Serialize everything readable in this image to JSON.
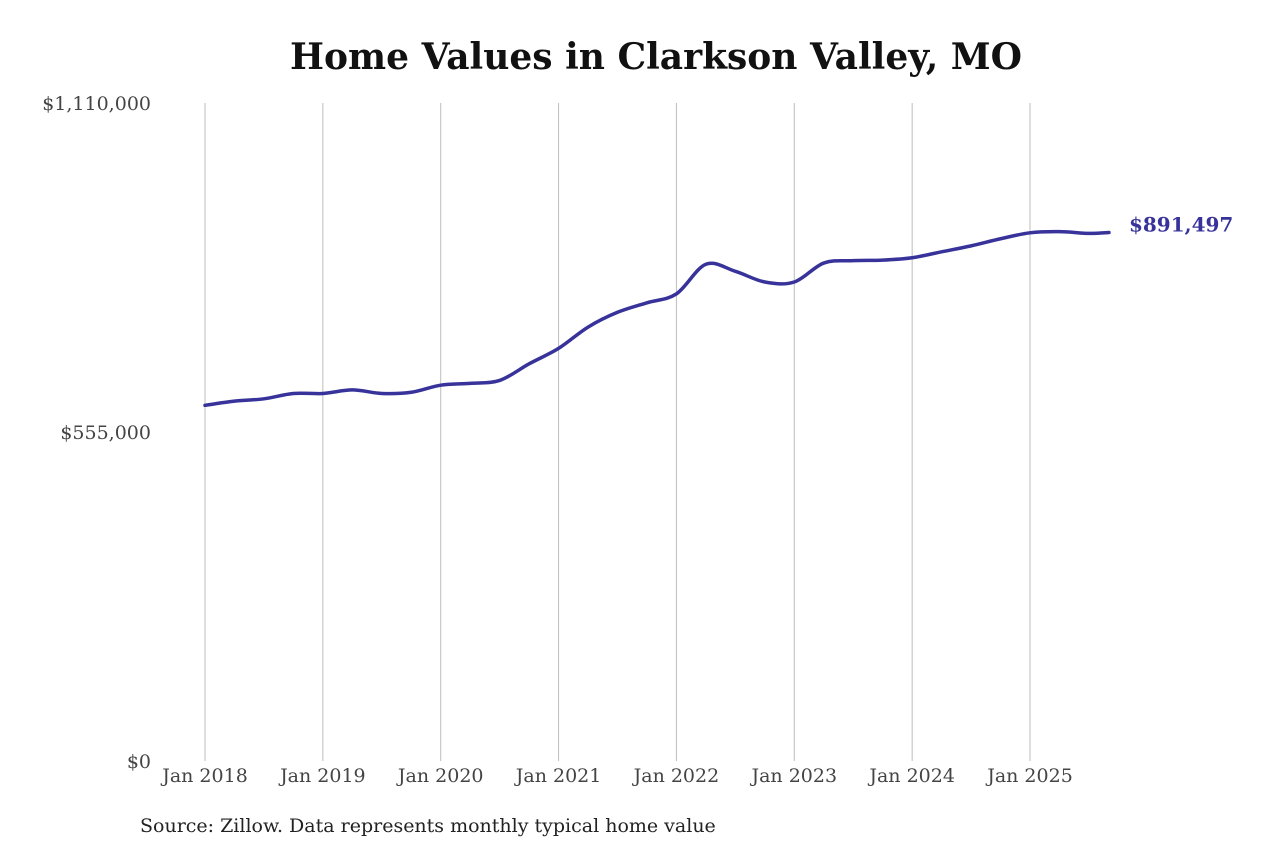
{
  "chart_data": {
    "type": "line",
    "title": "Home Values in Clarkson Valley, MO",
    "xlabel": "",
    "ylabel": "",
    "ylim": [
      0,
      1110000
    ],
    "y_ticks": [
      {
        "value": 0,
        "label": "$0"
      },
      {
        "value": 555000,
        "label": "$555,000"
      },
      {
        "value": 1110000,
        "label": "$1,110,000"
      }
    ],
    "x_ticks": [
      {
        "value": 2018,
        "label": "Jan 2018"
      },
      {
        "value": 2019,
        "label": "Jan 2019"
      },
      {
        "value": 2020,
        "label": "Jan 2020"
      },
      {
        "value": 2021,
        "label": "Jan 2021"
      },
      {
        "value": 2022,
        "label": "Jan 2022"
      },
      {
        "value": 2023,
        "label": "Jan 2023"
      },
      {
        "value": 2024,
        "label": "Jan 2024"
      },
      {
        "value": 2025,
        "label": "Jan 2025"
      }
    ],
    "grid": {
      "vertical": true,
      "horizontal": false
    },
    "line_color": "#38339a",
    "end_label": "$891,497",
    "series": [
      {
        "x": [
          2018.0,
          2018.25,
          2018.5,
          2018.75,
          2019.0,
          2019.25,
          2019.5,
          2019.75,
          2020.0,
          2020.25,
          2020.5,
          2020.75,
          2021.0,
          2021.25,
          2021.5,
          2021.75,
          2022.0,
          2022.25,
          2022.5,
          2022.75,
          2023.0,
          2023.25,
          2023.5,
          2023.75,
          2024.0,
          2024.25,
          2024.5,
          2024.75,
          2025.0,
          2025.25,
          2025.5,
          2025.67
        ],
        "y": [
          600000,
          607000,
          611000,
          620000,
          620000,
          626000,
          620000,
          622000,
          634000,
          637000,
          642000,
          670000,
          696000,
          732000,
          757000,
          773000,
          788000,
          838000,
          826000,
          808000,
          808000,
          840000,
          844000,
          845000,
          849000,
          859000,
          869000,
          881000,
          891000,
          893000,
          890000,
          891497
        ]
      }
    ]
  },
  "source": "Source: Zillow. Data represents monthly typical home value"
}
